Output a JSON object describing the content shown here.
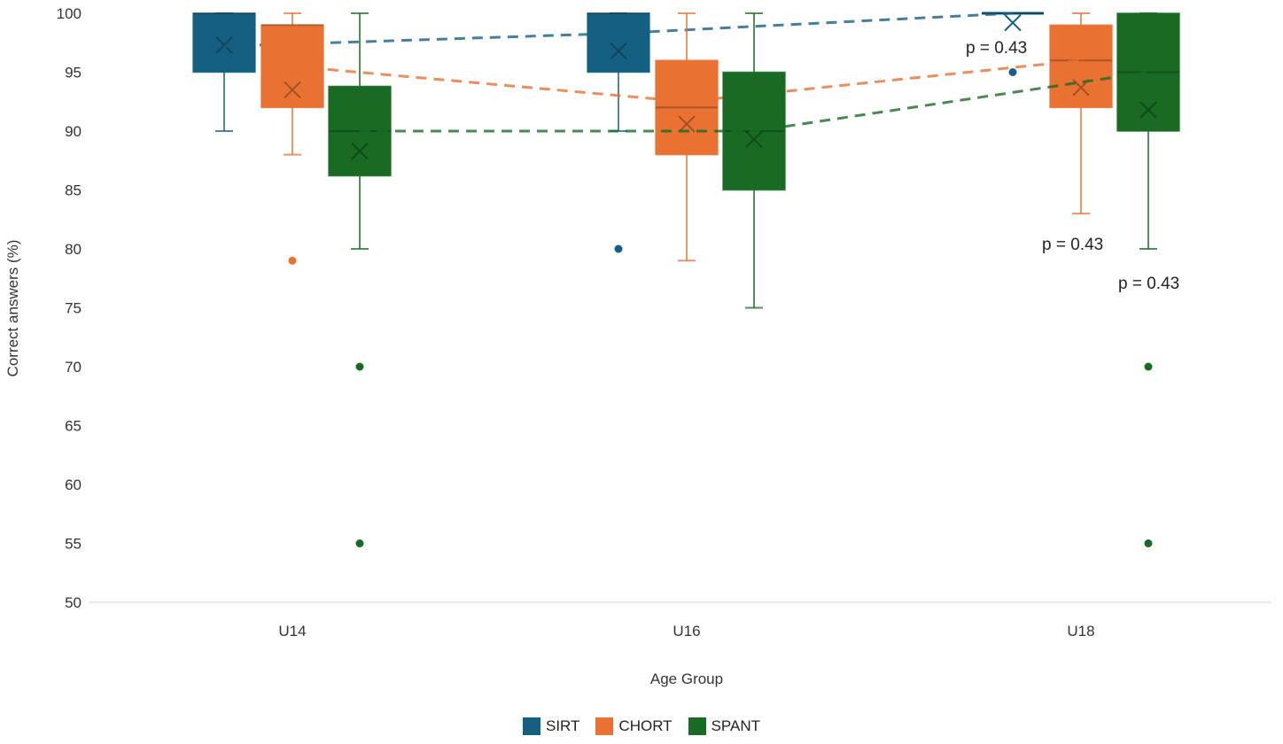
{
  "chart_data": {
    "type": "box",
    "title": "",
    "xlabel": "Age Group",
    "ylabel": "Correct answers (%)",
    "ylim": [
      50,
      100
    ],
    "yticks": [
      50,
      55,
      60,
      65,
      70,
      75,
      80,
      85,
      90,
      95,
      100
    ],
    "grid": false,
    "legend_position": "bottom",
    "categories": [
      "U14",
      "U16",
      "U18"
    ],
    "series": [
      {
        "name": "SIRT",
        "color": "#156082",
        "boxes": [
          {
            "min": 90,
            "q1": 95,
            "median": 100,
            "q3": 100,
            "max": 100,
            "mean": 97.3,
            "outliers": []
          },
          {
            "min": 90,
            "q1": 95,
            "median": 100,
            "q3": 100,
            "max": 100,
            "mean": 96.8,
            "outliers": [
              80
            ]
          },
          {
            "min": 100,
            "q1": 100,
            "median": 100,
            "q3": 100,
            "max": 100,
            "mean": 99.2,
            "outliers": [
              95
            ]
          }
        ],
        "trend": [
          97.2,
          98.3,
          100
        ]
      },
      {
        "name": "CHORT",
        "color": "#E97132",
        "boxes": [
          {
            "min": 88,
            "q1": 92,
            "median": 99,
            "q3": 99,
            "max": 100,
            "mean": 93.5,
            "outliers": [
              79
            ]
          },
          {
            "min": 79,
            "q1": 88,
            "median": 92,
            "q3": 96,
            "max": 100,
            "mean": 90.6,
            "outliers": []
          },
          {
            "min": 83,
            "q1": 92,
            "median": 96,
            "q3": 99,
            "max": 100,
            "mean": 93.7,
            "outliers": []
          }
        ],
        "trend": [
          95.5,
          92.5,
          96
        ]
      },
      {
        "name": "SPANT",
        "color": "#196B24",
        "boxes": [
          {
            "min": 80,
            "q1": 86.2,
            "median": 90,
            "q3": 93.8,
            "max": 100,
            "mean": 88.3,
            "outliers": [
              70,
              55
            ]
          },
          {
            "min": 75,
            "q1": 85,
            "median": 90,
            "q3": 95,
            "max": 100,
            "mean": 89.3,
            "outliers": []
          },
          {
            "min": 80,
            "q1": 90,
            "median": 95,
            "q3": 100,
            "max": 100,
            "mean": 91.8,
            "outliers": [
              70,
              55
            ]
          }
        ],
        "trend": [
          90,
          90,
          95
        ]
      }
    ],
    "annotations": [
      "p = 0.43",
      "p = 0.43",
      "p = 0.43"
    ]
  }
}
